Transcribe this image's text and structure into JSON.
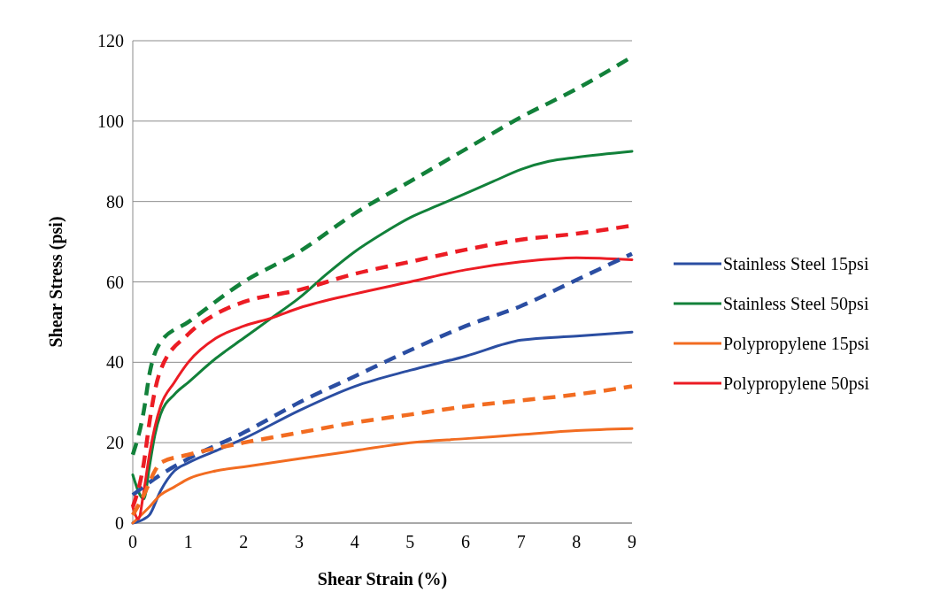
{
  "chart_data": {
    "type": "line",
    "xlabel": "Shear Strain (%)",
    "ylabel": "Shear Stress (psi)",
    "xlim": [
      0,
      9
    ],
    "xticks": [
      0,
      1,
      2,
      3,
      4,
      5,
      6,
      7,
      8,
      9
    ],
    "ylim": [
      0,
      120
    ],
    "yticks": [
      0,
      20,
      40,
      60,
      80,
      100,
      120
    ],
    "grid": "y",
    "legend": "right",
    "marker": "none",
    "series": [
      {
        "name": "Stainless Steel 15psi",
        "color": "#2b4ea2",
        "line_style": "solid",
        "x": [
          0,
          0.2,
          0.3,
          0.5,
          0.75,
          1,
          1.5,
          2,
          3,
          4,
          5,
          6,
          7,
          8,
          9
        ],
        "values": [
          0,
          1,
          2,
          8,
          13,
          15,
          18,
          21,
          28,
          34,
          38,
          41.5,
          45.5,
          46.5,
          47.5
        ]
      },
      {
        "name": "Stainless Steel 50psi",
        "color": "#12813a",
        "line_style": "solid",
        "x": [
          0,
          0.2,
          0.3,
          0.4,
          0.5,
          0.75,
          1,
          1.5,
          2,
          2.5,
          3,
          3.5,
          4,
          4.5,
          5,
          5.5,
          6,
          6.5,
          7,
          7.5,
          8,
          9
        ],
        "values": [
          12,
          6,
          14,
          22,
          27,
          32,
          35,
          41,
          46,
          51,
          56,
          62,
          67.5,
          72,
          76,
          79,
          82,
          85,
          88,
          90,
          91,
          92.5
        ]
      },
      {
        "name": "Polypropylene 15psi",
        "color": "#f26c21",
        "line_style": "solid",
        "x": [
          0,
          0.3,
          0.5,
          0.75,
          1,
          1.5,
          2,
          3,
          4,
          5,
          6,
          7,
          8,
          9
        ],
        "values": [
          0,
          4,
          7,
          9,
          11,
          13,
          14,
          16,
          18,
          20,
          21,
          22,
          23,
          23.5
        ]
      },
      {
        "name": "Polypropylene 50psi",
        "color": "#ec1c24",
        "line_style": "solid",
        "x": [
          0,
          0.1,
          0.2,
          0.3,
          0.4,
          0.5,
          0.75,
          1,
          1.5,
          2,
          2.5,
          3,
          4,
          5,
          6,
          7,
          8,
          9
        ],
        "values": [
          4,
          1,
          8,
          17,
          24,
          29,
          35,
          40,
          46,
          49,
          51,
          53.5,
          57,
          60,
          63,
          65,
          66,
          65.5
        ]
      },
      {
        "color": "#2b4ea2",
        "line_style": "dashed",
        "x": [
          0,
          0.5,
          1,
          2,
          3,
          4,
          5,
          6,
          7,
          8,
          9
        ],
        "values": [
          7,
          12,
          16,
          22.5,
          30,
          36.5,
          43,
          49,
          54,
          60.5,
          67
        ]
      },
      {
        "color": "#12813a",
        "line_style": "dashed",
        "x": [
          0,
          0.2,
          0.3,
          0.5,
          1,
          2,
          3,
          4,
          5,
          6,
          7,
          8,
          9
        ],
        "values": [
          17,
          28,
          37,
          45,
          50,
          60,
          67.5,
          77,
          85,
          93,
          101,
          108,
          116
        ]
      },
      {
        "color": "#f26c21",
        "line_style": "dashed",
        "x": [
          0,
          0.2,
          0.4,
          0.5,
          1,
          2,
          3,
          4,
          5,
          6,
          7,
          8,
          9
        ],
        "values": [
          2,
          7,
          13,
          15,
          17,
          20,
          22.5,
          25,
          27,
          29,
          30.5,
          32,
          34
        ]
      },
      {
        "color": "#ec1c24",
        "line_style": "dashed",
        "x": [
          0,
          0.2,
          0.3,
          0.4,
          0.5,
          1,
          1.5,
          2,
          3,
          4,
          5,
          6,
          7,
          8,
          9
        ],
        "values": [
          4,
          15,
          25,
          33,
          38,
          47,
          52,
          55,
          58,
          62,
          65,
          68,
          70.5,
          72,
          74
        ]
      }
    ]
  }
}
